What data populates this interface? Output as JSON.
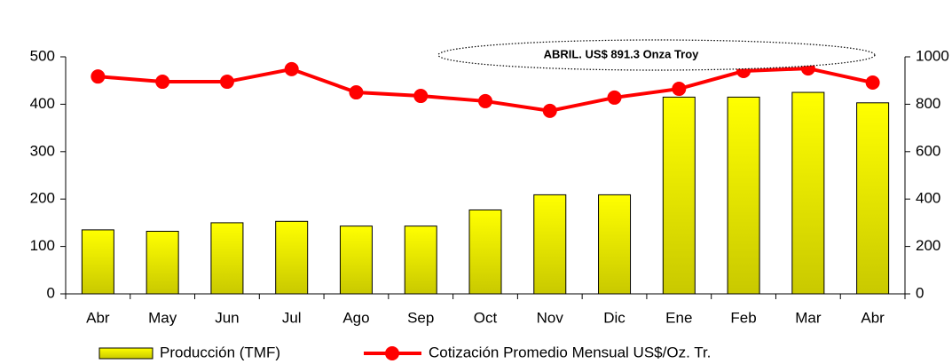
{
  "chart_data": {
    "type": "combo",
    "categories": [
      "Abr",
      "May",
      "Jun",
      "Jul",
      "Ago",
      "Sep",
      "Oct",
      "Nov",
      "Dic",
      "Ene",
      "Feb",
      "Mar",
      "Abr"
    ],
    "series": [
      {
        "name": "Producción (TMF)",
        "type": "bar",
        "color": "#ffff00",
        "values": [
          135,
          132,
          150,
          153,
          143,
          143,
          177,
          209,
          209,
          415,
          415,
          425,
          403
        ]
      },
      {
        "name": "Cotización Promedio Mensual US$/Oz. Tr.",
        "type": "line",
        "axis": "y2",
        "color": "#ff0000",
        "values": [
          917,
          895,
          895,
          948,
          850,
          835,
          813,
          772,
          828,
          865,
          940,
          951,
          891.3
        ]
      }
    ],
    "ylim": [
      0,
      500
    ],
    "yticks": [
      0,
      100,
      200,
      300,
      400,
      500
    ],
    "y2lim": [
      0,
      1000
    ],
    "y2ticks": [
      0,
      200,
      400,
      600,
      800,
      1000
    ],
    "annotations": [
      "ABRIL. US$ 891.3 Onza Troy"
    ],
    "grid": false
  }
}
